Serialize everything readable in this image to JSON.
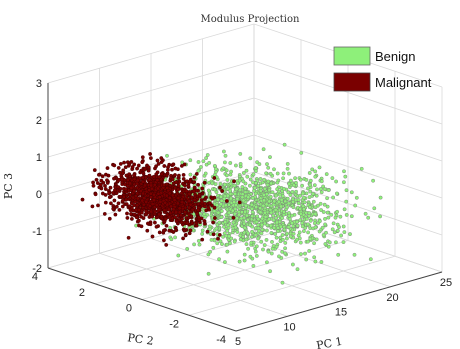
{
  "chart_data": {
    "type": "scatter",
    "title": "Modulus Projection",
    "xlabel": "PC 1",
    "ylabel": "PC 2",
    "zlabel": "PC 3",
    "xlim": [
      5,
      25
    ],
    "ylim": [
      -4,
      4
    ],
    "zlim": [
      -2,
      3
    ],
    "x_ticks": [
      "5",
      "10",
      "15",
      "20",
      "25"
    ],
    "y_ticks": [
      "-4",
      "-2",
      "0",
      "2",
      "4"
    ],
    "z_ticks": [
      "-2",
      "-1",
      "0",
      "1",
      "2",
      "3"
    ],
    "grid": true,
    "projection": "3d",
    "legend_position": "top-right",
    "series": [
      {
        "name": "Benign",
        "color": "#8ef07a",
        "point_count": 1400,
        "approx_range": {
          "pc1": [
            10,
            25
          ],
          "pc2": [
            -3,
            3
          ],
          "pc3": [
            -1.5,
            1.5
          ]
        }
      },
      {
        "name": "Malignant",
        "color": "#7a0000",
        "point_count": 1100,
        "approx_range": {
          "pc1": [
            6,
            14
          ],
          "pc2": [
            -2,
            3
          ],
          "pc3": [
            -1.2,
            2.5
          ]
        }
      }
    ]
  }
}
